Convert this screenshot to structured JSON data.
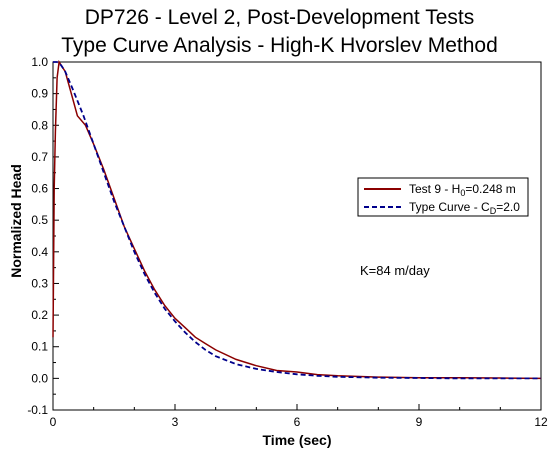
{
  "chart_data": {
    "type": "line",
    "title": "DP726 - Level 2, Post-Development Tests",
    "subtitle": "Type Curve Analysis - High-K Hvorslev Method",
    "xlabel": "Time (sec)",
    "ylabel": "Normalized Head",
    "xlim": [
      0,
      12
    ],
    "ylim": [
      -0.1,
      1.0
    ],
    "x_ticks": [
      "0",
      "3",
      "6",
      "9",
      "12"
    ],
    "y_ticks": [
      "-0.1",
      "0.0",
      "0.1",
      "0.2",
      "0.3",
      "0.4",
      "0.5",
      "0.6",
      "0.7",
      "0.8",
      "0.9",
      "1.0"
    ],
    "grid": false,
    "legend_position": "right",
    "annotation": "K=84 m/day",
    "series": [
      {
        "name_main": "Test 9 - H",
        "name_sub": "0",
        "name_tail": "=0.248 m",
        "color": "#8B0000",
        "style": "solid",
        "x": [
          0.0,
          0.03,
          0.06,
          0.1,
          0.15,
          0.2,
          0.3,
          0.45,
          0.6,
          0.8,
          1.0,
          1.25,
          1.5,
          1.75,
          2.0,
          2.25,
          2.5,
          2.75,
          3.0,
          3.25,
          3.5,
          3.75,
          4.0,
          4.5,
          5.0,
          5.5,
          6.0,
          6.5,
          7.0,
          8.0,
          9.0,
          10.0,
          11.0,
          12.0
        ],
        "y": [
          0.13,
          0.6,
          0.78,
          0.95,
          1.0,
          0.99,
          0.97,
          0.9,
          0.83,
          0.8,
          0.74,
          0.66,
          0.57,
          0.48,
          0.41,
          0.34,
          0.28,
          0.23,
          0.19,
          0.16,
          0.13,
          0.11,
          0.09,
          0.06,
          0.04,
          0.025,
          0.02,
          0.012,
          0.008,
          0.004,
          0.002,
          0.002,
          0.001,
          0.0
        ]
      },
      {
        "name_main": "Type Curve - C",
        "name_sub": "D",
        "name_tail": "=2.0",
        "color": "#00008B",
        "style": "dashed",
        "x": [
          0.0,
          0.1,
          0.2,
          0.3,
          0.5,
          0.75,
          1.0,
          1.25,
          1.5,
          1.75,
          2.0,
          2.25,
          2.5,
          2.75,
          3.0,
          3.25,
          3.5,
          3.75,
          4.0,
          4.5,
          5.0,
          5.5,
          6.0,
          6.5,
          7.0,
          8.0,
          9.0,
          10.0,
          11.0,
          12.0
        ],
        "y": [
          1.0,
          1.0,
          0.99,
          0.97,
          0.91,
          0.83,
          0.74,
          0.65,
          0.56,
          0.48,
          0.4,
          0.33,
          0.27,
          0.22,
          0.18,
          0.145,
          0.115,
          0.09,
          0.07,
          0.045,
          0.03,
          0.02,
          0.013,
          0.008,
          0.005,
          0.002,
          0.001,
          0.0,
          0.0,
          0.0
        ]
      }
    ]
  }
}
